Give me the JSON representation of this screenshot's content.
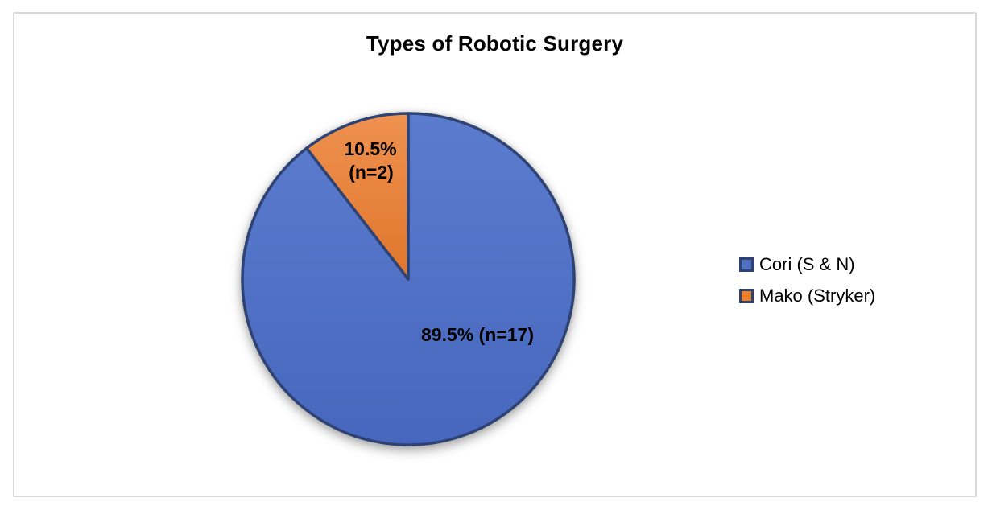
{
  "chart_data": {
    "type": "pie",
    "title": "Types of Robotic Surgery",
    "legend_position": "right",
    "start_angle_deg": 0,
    "direction": "clockwise",
    "slice_border_color": "#2e4273",
    "frame_border_color": "#d9d9d9",
    "slices": [
      {
        "name": "Cori (S & N)",
        "percent": 89.5,
        "n": 17,
        "data_label_lines": [
          "89.5% (n=17)"
        ],
        "color": "#4f71c2",
        "gradient_top": "#5b7cce",
        "gradient_bottom": "#4667bd"
      },
      {
        "name": "Mako (Stryker)",
        "percent": 10.5,
        "n": 2,
        "data_label_lines": [
          "10.5%",
          "(n=2)"
        ],
        "color": "#e8802f",
        "gradient_top": "#ef9150",
        "gradient_bottom": "#e0762b"
      }
    ]
  }
}
